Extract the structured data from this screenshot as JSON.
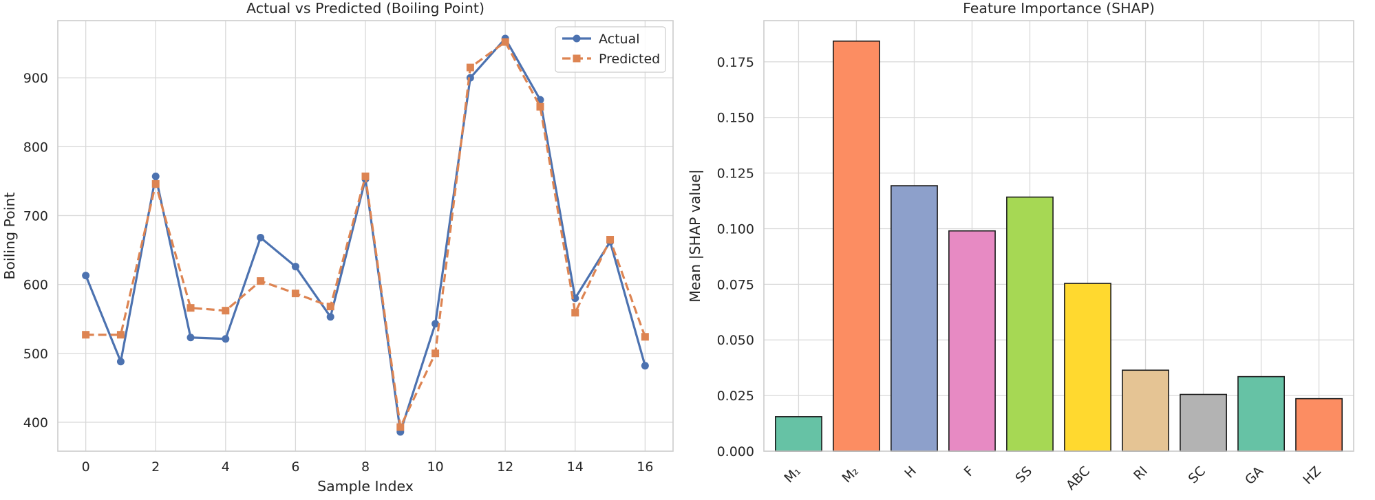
{
  "chart_data": [
    {
      "type": "line",
      "title": "Actual vs Predicted (Boiling Point)",
      "xlabel": "Sample Index",
      "ylabel": "Boiling Point",
      "x": [
        0,
        1,
        2,
        3,
        4,
        5,
        6,
        7,
        8,
        9,
        10,
        11,
        12,
        13,
        14,
        15,
        16
      ],
      "xticks": [
        0,
        2,
        4,
        6,
        8,
        10,
        12,
        14,
        16
      ],
      "yticks": [
        400,
        500,
        600,
        700,
        800,
        900
      ],
      "xlim": [
        -0.8,
        16.8
      ],
      "ylim": [
        358,
        983
      ],
      "grid": true,
      "legend": "top-right",
      "series": [
        {
          "name": "Actual",
          "color": "#4c72b0",
          "marker": "circle",
          "linestyle": "solid",
          "values": [
            613,
            488,
            757,
            523,
            521,
            668,
            626,
            553,
            753,
            386,
            543,
            900,
            957,
            868,
            580,
            662,
            482
          ]
        },
        {
          "name": "Predicted",
          "color": "#dd8452",
          "marker": "square",
          "linestyle": "dashed",
          "values": [
            527,
            527,
            746,
            566,
            562,
            605,
            587,
            568,
            757,
            393,
            500,
            915,
            952,
            858,
            559,
            665,
            524
          ]
        }
      ]
    },
    {
      "type": "bar",
      "title": "Feature Importance (SHAP)",
      "xlabel": "",
      "ylabel": "Mean |SHAP value|",
      "categories": [
        "M₁",
        "M₂",
        "H",
        "F",
        "SS",
        "ABC",
        "RI",
        "SC",
        "GA",
        "HZ"
      ],
      "values": [
        0.0155,
        0.1843,
        0.1193,
        0.099,
        0.1142,
        0.0754,
        0.0364,
        0.0255,
        0.0335,
        0.0236
      ],
      "colors": [
        "#66c2a5",
        "#fc8d62",
        "#8da0cb",
        "#e78ac3",
        "#a6d854",
        "#ffd92f",
        "#e5c494",
        "#b3b3b3",
        "#66c2a5",
        "#fc8d62"
      ],
      "yticks": [
        "0.000",
        "0.025",
        "0.050",
        "0.075",
        "0.100",
        "0.125",
        "0.150",
        "0.175"
      ],
      "ylim": [
        0,
        0.1935
      ],
      "grid": true
    }
  ]
}
